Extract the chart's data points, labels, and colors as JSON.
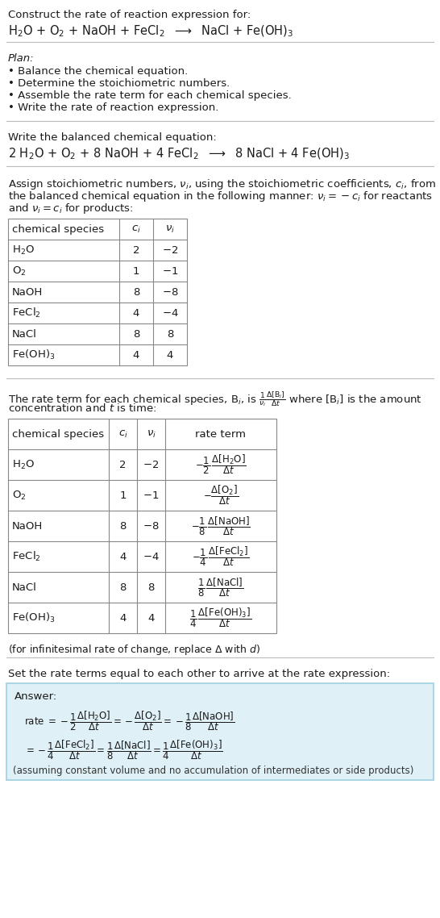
{
  "bg_color": "#ffffff",
  "text_color": "#1a1a1a",
  "title_line1": "Construct the rate of reaction expression for:",
  "reaction_unbalanced": "H$_2$O + O$_2$ + NaOH + FeCl$_2$  $\\longrightarrow$  NaCl + Fe(OH)$_3$",
  "plan_header": "Plan:",
  "plan_items": [
    "• Balance the chemical equation.",
    "• Determine the stoichiometric numbers.",
    "• Assemble the rate term for each chemical species.",
    "• Write the rate of reaction expression."
  ],
  "balanced_header": "Write the balanced chemical equation:",
  "reaction_balanced": "2 H$_2$O + O$_2$ + 8 NaOH + 4 FeCl$_2$  $\\longrightarrow$  8 NaCl + 4 Fe(OH)$_3$",
  "assign_text_lines": [
    "Assign stoichiometric numbers, $\\nu_i$, using the stoichiometric coefficients, $c_i$, from",
    "the balanced chemical equation in the following manner: $\\nu_i = -c_i$ for reactants",
    "and $\\nu_i = c_i$ for products:"
  ],
  "table1_headers": [
    "chemical species",
    "$c_i$",
    "$\\nu_i$"
  ],
  "table1_data": [
    [
      "H$_2$O",
      "2",
      "$-2$"
    ],
    [
      "O$_2$",
      "1",
      "$-1$"
    ],
    [
      "NaOH",
      "8",
      "$-8$"
    ],
    [
      "FeCl$_2$",
      "4",
      "$-4$"
    ],
    [
      "NaCl",
      "8",
      "8"
    ],
    [
      "Fe(OH)$_3$",
      "4",
      "4"
    ]
  ],
  "rate_term_text_lines": [
    "The rate term for each chemical species, B$_i$, is $\\frac{1}{\\nu_i}\\frac{\\Delta[\\mathrm{B}_i]}{\\Delta t}$ where [B$_i$] is the amount",
    "concentration and $t$ is time:"
  ],
  "table2_headers": [
    "chemical species",
    "$c_i$",
    "$\\nu_i$",
    "rate term"
  ],
  "table2_data": [
    [
      "H$_2$O",
      "2",
      "$-2$",
      "$-\\dfrac{1}{2}\\,\\dfrac{\\Delta[\\mathrm{H_2O}]}{\\Delta t}$"
    ],
    [
      "O$_2$",
      "1",
      "$-1$",
      "$-\\dfrac{\\Delta[\\mathrm{O_2}]}{\\Delta t}$"
    ],
    [
      "NaOH",
      "8",
      "$-8$",
      "$-\\dfrac{1}{8}\\,\\dfrac{\\Delta[\\mathrm{NaOH}]}{\\Delta t}$"
    ],
    [
      "FeCl$_2$",
      "4",
      "$-4$",
      "$-\\dfrac{1}{4}\\,\\dfrac{\\Delta[\\mathrm{FeCl_2}]}{\\Delta t}$"
    ],
    [
      "NaCl",
      "8",
      "8",
      "$\\dfrac{1}{8}\\,\\dfrac{\\Delta[\\mathrm{NaCl}]}{\\Delta t}$"
    ],
    [
      "Fe(OH)$_3$",
      "4",
      "4",
      "$\\dfrac{1}{4}\\,\\dfrac{\\Delta[\\mathrm{Fe(OH)_3}]}{\\Delta t}$"
    ]
  ],
  "infinitesimal_note": "(for infinitesimal rate of change, replace $\\Delta$ with $d$)",
  "set_rate_text": "Set the rate terms equal to each other to arrive at the rate expression:",
  "answer_label": "Answer:",
  "answer_box_color": "#dff0f7",
  "answer_box_border": "#9ecfe0",
  "answer_line1": "rate $= -\\dfrac{1}{2}\\dfrac{\\Delta[\\mathrm{H_2O}]}{\\Delta t} = -\\dfrac{\\Delta[\\mathrm{O_2}]}{\\Delta t} = -\\dfrac{1}{8}\\dfrac{\\Delta[\\mathrm{NaOH}]}{\\Delta t}$",
  "answer_line2": "$= -\\dfrac{1}{4}\\dfrac{\\Delta[\\mathrm{FeCl_2}]}{\\Delta t} = \\dfrac{1}{8}\\dfrac{\\Delta[\\mathrm{NaCl}]}{\\Delta t} = \\dfrac{1}{4}\\dfrac{\\Delta[\\mathrm{Fe(OH)_3}]}{\\Delta t}$",
  "answer_footer": "(assuming constant volume and no accumulation of intermediates or side products)"
}
